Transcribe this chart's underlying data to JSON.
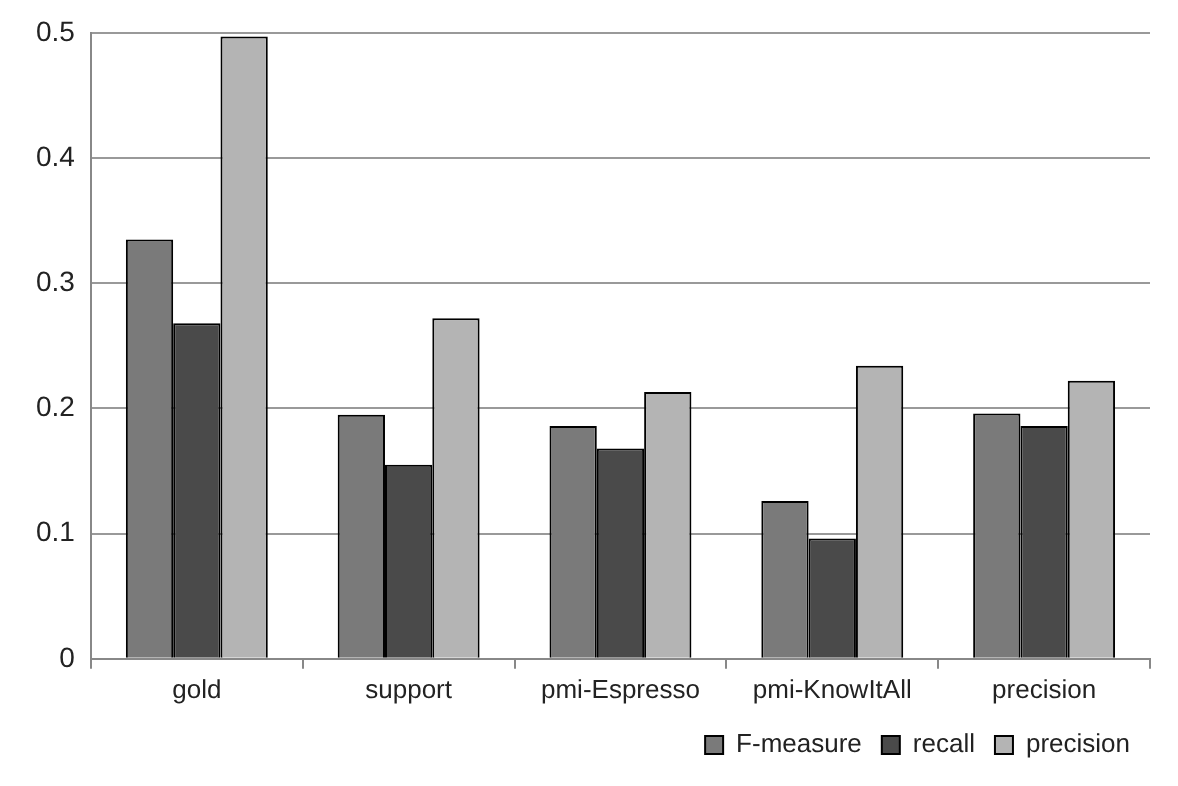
{
  "chart_data": {
    "type": "bar",
    "categories": [
      "gold",
      "support",
      "pmi-Espresso",
      "pmi-KnowItAll",
      "precision"
    ],
    "series": [
      {
        "name": "F-measure",
        "color": "#7a7a7a",
        "values": [
          0.335,
          0.195,
          0.186,
          0.126,
          0.196
        ]
      },
      {
        "name": "recall",
        "color": "#4a4a4a",
        "values": [
          0.268,
          0.155,
          0.168,
          0.096,
          0.186
        ]
      },
      {
        "name": "precision",
        "color": "#b4b4b4",
        "values": [
          0.497,
          0.272,
          0.213,
          0.234,
          0.222
        ]
      }
    ],
    "ylim": [
      0,
      0.5
    ],
    "yticks": [
      0,
      0.1,
      0.2,
      0.3,
      0.4,
      0.5
    ],
    "grid": "y",
    "legend": "bottom"
  }
}
